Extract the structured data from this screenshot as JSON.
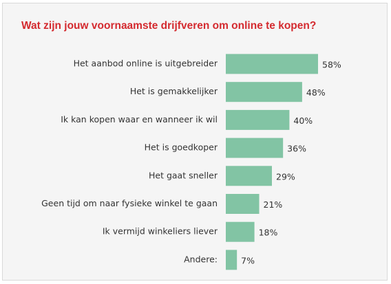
{
  "title": "Wat zijn jouw voornaamste drijfveren om online te kopen?",
  "colors": {
    "bar": "#82c4a4",
    "title": "#d42a2f",
    "text": "#333333",
    "background": "#f5f5f5"
  },
  "chart_data": {
    "type": "bar",
    "orientation": "horizontal",
    "title": "Wat zijn jouw voornaamste drijfveren om online te kopen?",
    "categories": [
      "Het aanbod online is uitgebreider",
      "Het is gemakkelijker",
      "Ik kan kopen waar en wanneer ik wil",
      "Het is goedkoper",
      "Het gaat sneller",
      "Geen tijd om naar fysieke winkel te gaan",
      "Ik vermijd winkeliers liever",
      "Andere:"
    ],
    "values": [
      58,
      48,
      40,
      36,
      29,
      21,
      18,
      7
    ],
    "value_labels": [
      "58%",
      "48%",
      "40%",
      "36%",
      "29%",
      "21%",
      "18%",
      "7%"
    ],
    "xlim": [
      0,
      58
    ],
    "grid": false,
    "legend": "none"
  }
}
